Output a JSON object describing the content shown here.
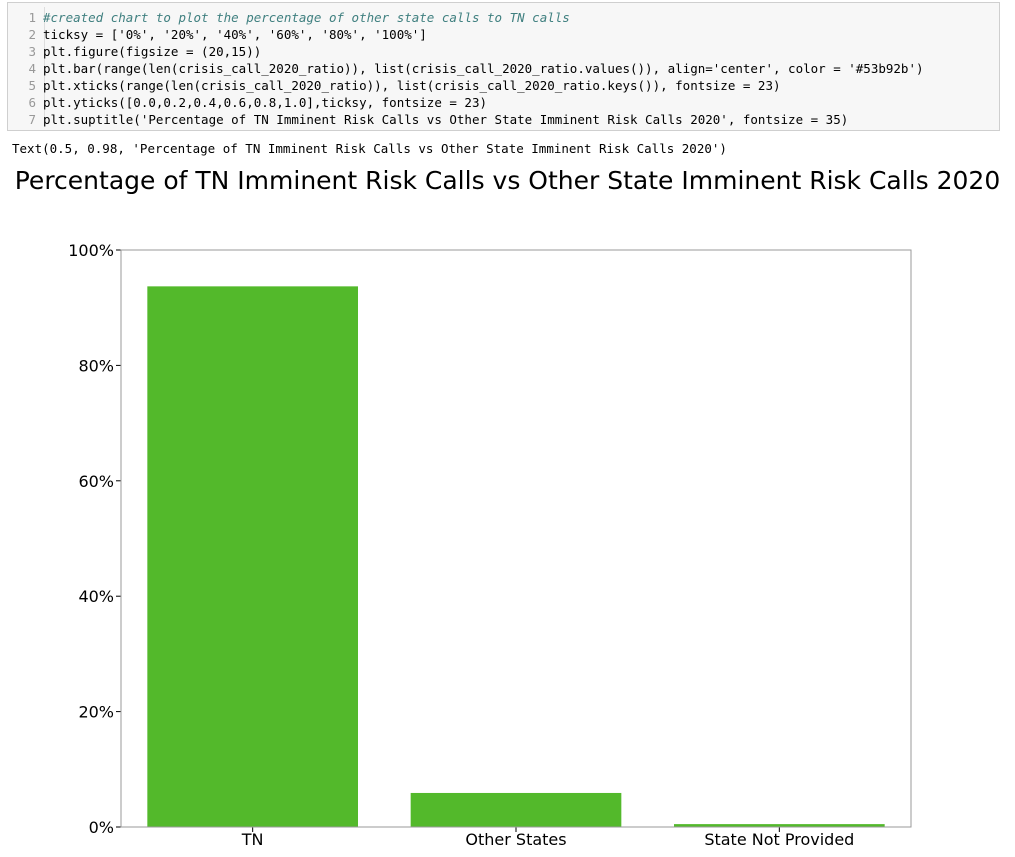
{
  "code_cell": {
    "lines": [
      {
        "num": "1",
        "text": "#created chart to plot the percentage of other state calls to TN calls",
        "kind": "comment"
      },
      {
        "num": "2",
        "text": "ticksy = ['0%', '20%', '40%', '60%', '80%', '100%']",
        "kind": "code"
      },
      {
        "num": "3",
        "text": "plt.figure(figsize = (20,15))",
        "kind": "code"
      },
      {
        "num": "4",
        "text": "plt.bar(range(len(crisis_call_2020_ratio)), list(crisis_call_2020_ratio.values()), align='center', color = '#53b92b')",
        "kind": "code"
      },
      {
        "num": "5",
        "text": "plt.xticks(range(len(crisis_call_2020_ratio)), list(crisis_call_2020_ratio.keys()), fontsize = 23)",
        "kind": "code"
      },
      {
        "num": "6",
        "text": "plt.yticks([0.0,0.2,0.4,0.6,0.8,1.0],ticksy, fontsize = 23)",
        "kind": "code"
      },
      {
        "num": "7",
        "text": "plt.suptitle('Percentage of TN Imminent Risk Calls vs Other State Imminent Risk Calls 2020', fontsize = 35)",
        "kind": "code"
      }
    ]
  },
  "output": {
    "text": "Text(0.5, 0.98, 'Percentage of TN Imminent Risk Calls vs Other State Imminent Risk Calls 2020')"
  },
  "chart_data": {
    "type": "bar",
    "title": "Percentage of TN Imminent Risk Calls vs Other State Imminent Risk Calls 2020",
    "categories": [
      "TN",
      "Other States",
      "State Not Provided"
    ],
    "values": [
      0.937,
      0.059,
      0.005
    ],
    "ylim": [
      0,
      1.0
    ],
    "yticks": [
      0.0,
      0.2,
      0.4,
      0.6,
      0.8,
      1.0
    ],
    "ytick_labels": [
      "0%",
      "20%",
      "40%",
      "60%",
      "80%",
      "100%"
    ],
    "bar_color": "#53b92b",
    "grid": false,
    "legend": "none"
  }
}
